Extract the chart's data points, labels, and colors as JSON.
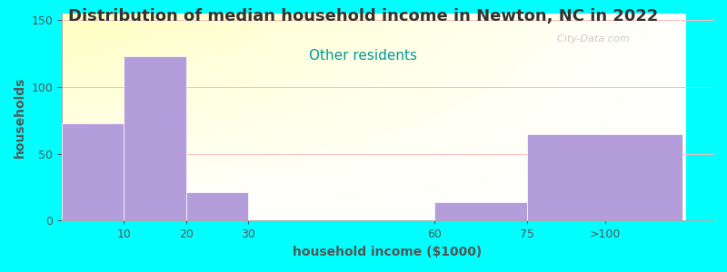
{
  "title": "Distribution of median household income in Newton, NC in 2022",
  "subtitle": "Other residents",
  "xlabel": "household income ($1000)",
  "ylabel": "households",
  "background_color": "#00FFFF",
  "bar_color": "#b39ddb",
  "bar_edge_color": "#ffffff",
  "categories": [
    "10",
    "20",
    "30",
    "60",
    "75",
    ">100"
  ],
  "values": [
    73,
    123,
    21,
    0,
    14,
    65
  ],
  "bar_lefts": [
    0,
    10,
    20,
    30,
    60,
    75
  ],
  "bar_widths": [
    10,
    10,
    10,
    30,
    15,
    25
  ],
  "xlim": [
    0,
    100
  ],
  "xticks": [
    10,
    20,
    30,
    60,
    75
  ],
  "xtick_labels": [
    "10",
    "20",
    "30",
    "60",
    "75"
  ],
  "ylim": [
    0,
    155
  ],
  "yticks": [
    0,
    50,
    100,
    150
  ],
  "title_fontsize": 13,
  "subtitle_fontsize": 11,
  "subtitle_color": "#009999",
  "title_color": "#333333",
  "axis_label_fontsize": 10,
  "tick_label_fontsize": 9,
  "watermark": "  City-Data.com",
  "grid_color": "#ffbbbb",
  "plot_bg_colors": [
    "#ffffff",
    "#e8f5e9"
  ],
  "ylabel_color": "#555555",
  "xlabel_color": "#555555"
}
